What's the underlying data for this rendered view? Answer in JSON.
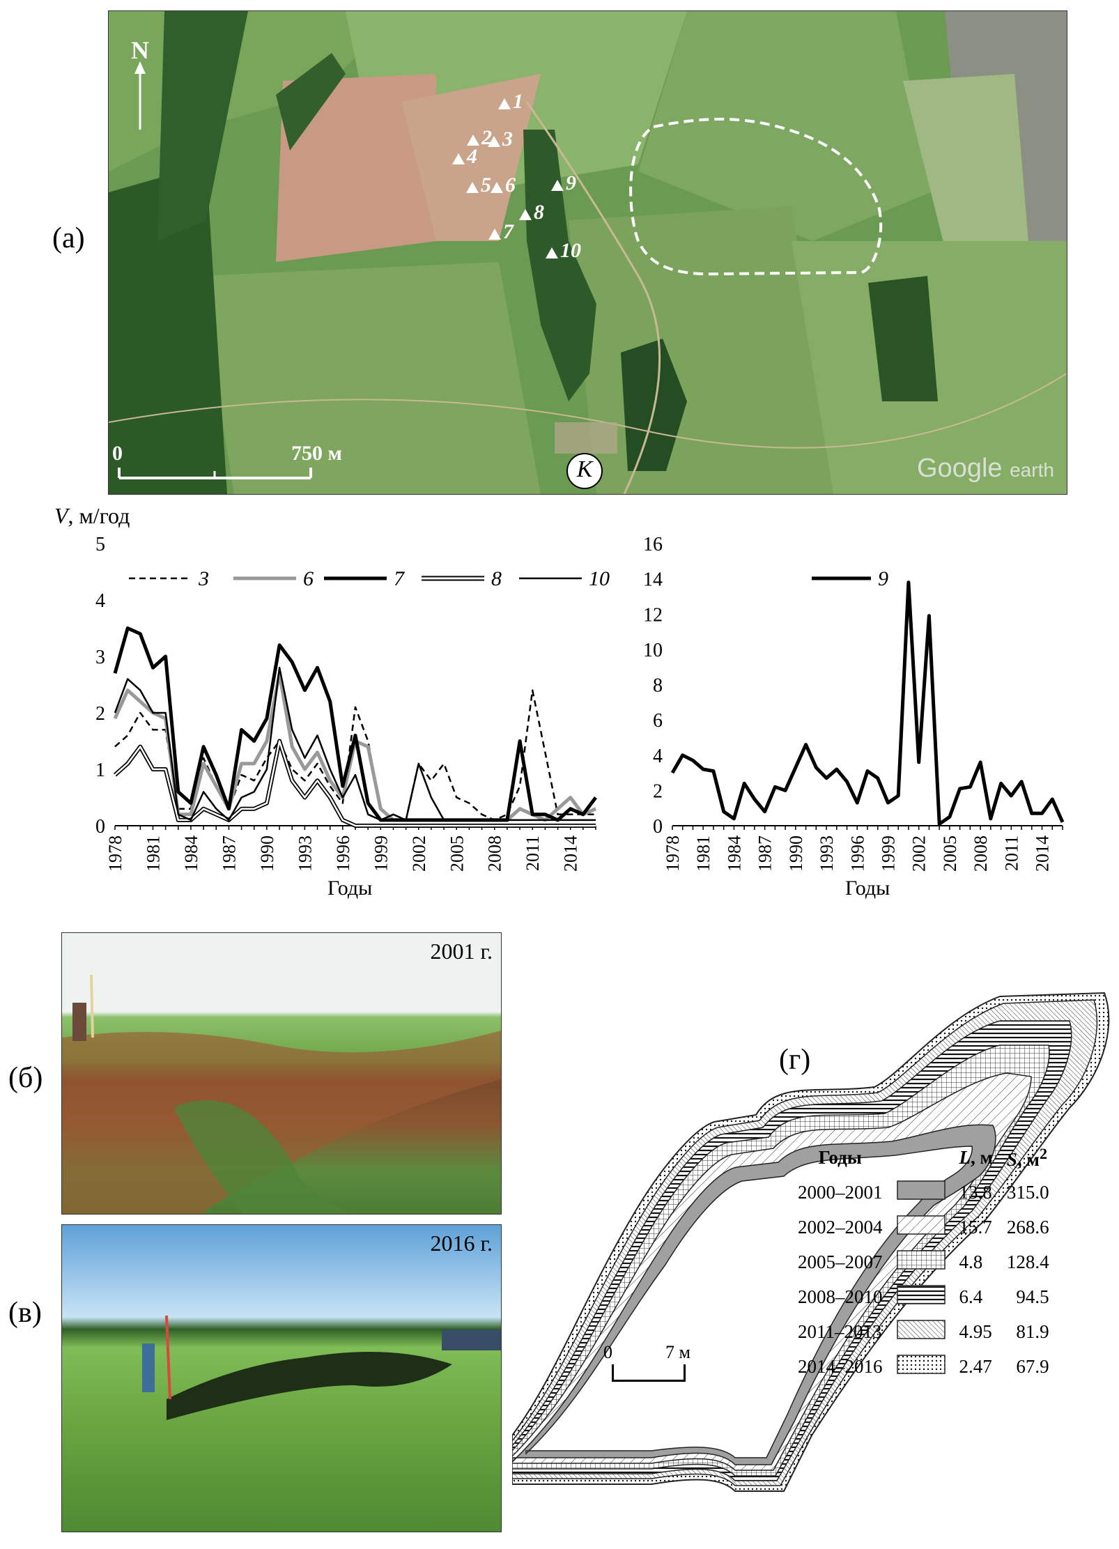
{
  "panels": {
    "a": "(а)",
    "b": "(б)",
    "v": "(в)",
    "g": "(г)"
  },
  "map": {
    "north": "N",
    "scale_zero": "0",
    "scale_end": "750 м",
    "site_marker": "К",
    "watermark_brand": "Google",
    "watermark_product": "earth",
    "points": [
      {
        "id": "1"
      },
      {
        "id": "2"
      },
      {
        "id": "3"
      },
      {
        "id": "4"
      },
      {
        "id": "5"
      },
      {
        "id": "6"
      },
      {
        "id": "7"
      },
      {
        "id": "8"
      },
      {
        "id": "9"
      },
      {
        "id": "10"
      }
    ]
  },
  "photos": {
    "top_year": "2001 г.",
    "bottom_year": "2016 г."
  },
  "chart_data": [
    {
      "type": "line",
      "ylabel_main": "V",
      "ylabel_unit": ", м/год",
      "xlabel": "Годы",
      "ylim": [
        0,
        5
      ],
      "yticks": [
        "0",
        "1",
        "2",
        "3",
        "4",
        "5"
      ],
      "xticks": [
        "1978",
        "1981",
        "1984",
        "1987",
        "1990",
        "1993",
        "1996",
        "1999",
        "2002",
        "2005",
        "2008",
        "2011",
        "2014"
      ],
      "x": [
        1978,
        1979,
        1980,
        1981,
        1982,
        1983,
        1984,
        1985,
        1986,
        1987,
        1988,
        1989,
        1990,
        1991,
        1992,
        1993,
        1994,
        1995,
        1996,
        1997,
        1998,
        1999,
        2000,
        2001,
        2002,
        2003,
        2004,
        2005,
        2006,
        2007,
        2008,
        2009,
        2010,
        2011,
        2012,
        2013,
        2014,
        2015,
        2016
      ],
      "series": [
        {
          "name": "3",
          "style": "dashed",
          "color": "#000000",
          "values": [
            1.4,
            1.6,
            2.0,
            1.7,
            1.7,
            0.3,
            0.3,
            1.2,
            0.7,
            0.3,
            0.9,
            0.8,
            1.2,
            1.5,
            1.0,
            0.8,
            1.1,
            0.7,
            0.4,
            2.1,
            1.5,
            0.3,
            0.1,
            0.1,
            1.1,
            0.8,
            1.1,
            0.5,
            0.4,
            0.2,
            0.1,
            0.2,
            0.7,
            2.4,
            1.3,
            0.2,
            0.2,
            0.2,
            0.2
          ]
        },
        {
          "name": "6",
          "style": "solid",
          "color": "#999999",
          "values": [
            1.9,
            2.4,
            2.2,
            2.0,
            1.9,
            0.2,
            0.2,
            1.1,
            0.7,
            0.3,
            1.1,
            1.1,
            1.5,
            2.7,
            1.4,
            1.0,
            1.3,
            0.8,
            0.5,
            1.5,
            1.4,
            0.3,
            0.1,
            0.1,
            0.1,
            0.1,
            0.1,
            0.1,
            0.1,
            0.1,
            0.1,
            0.1,
            0.3,
            0.2,
            0.1,
            0.3,
            0.5,
            0.2,
            0.3
          ]
        },
        {
          "name": "7",
          "style": "bold",
          "color": "#000000",
          "values": [
            2.7,
            3.5,
            3.4,
            2.8,
            3.0,
            0.6,
            0.4,
            1.4,
            0.9,
            0.3,
            1.7,
            1.5,
            1.9,
            3.2,
            2.9,
            2.4,
            2.8,
            2.2,
            0.7,
            1.6,
            0.4,
            0.1,
            0.1,
            0.1,
            0.1,
            0.1,
            0.1,
            0.1,
            0.1,
            0.1,
            0.1,
            0.1,
            1.5,
            0.2,
            0.2,
            0.1,
            0.3,
            0.2,
            0.5
          ]
        },
        {
          "name": "8",
          "style": "double",
          "color": "#000000",
          "values": [
            0.9,
            1.1,
            1.4,
            1.0,
            1.0,
            0.1,
            0.1,
            0.3,
            0.2,
            0.1,
            0.3,
            0.3,
            0.4,
            1.5,
            0.8,
            0.5,
            0.8,
            0.5,
            0.1,
            0.0,
            0.0,
            0.0,
            0.0,
            0.0,
            0.0,
            0.0,
            0.0,
            0.0,
            0.0,
            0.0,
            0.0,
            0.0,
            0.0,
            0.0,
            0.0,
            0.0,
            0.0,
            0.0,
            0.0
          ]
        },
        {
          "name": "10",
          "style": "thin",
          "color": "#000000",
          "values": [
            2.0,
            2.6,
            2.4,
            2.0,
            2.0,
            0.2,
            0.1,
            0.6,
            0.3,
            0.1,
            0.5,
            0.6,
            1.0,
            2.8,
            1.7,
            1.2,
            1.6,
            1.0,
            0.5,
            0.9,
            0.2,
            0.1,
            0.2,
            0.1,
            1.1,
            0.5,
            0.1,
            0.1,
            0.1,
            0.1,
            0.1,
            0.1,
            0.1,
            0.1,
            0.1,
            0.1,
            0.1,
            0.1,
            0.1
          ]
        }
      ]
    },
    {
      "type": "line",
      "xlabel": "Годы",
      "ylim": [
        0,
        16
      ],
      "yticks": [
        "0",
        "2",
        "4",
        "6",
        "8",
        "10",
        "12",
        "14",
        "16"
      ],
      "xticks": [
        "1978",
        "1981",
        "1984",
        "1987",
        "1990",
        "1993",
        "1996",
        "1999",
        "2002",
        "2005",
        "2008",
        "2011",
        "2014"
      ],
      "x": [
        1978,
        1979,
        1980,
        1981,
        1982,
        1983,
        1984,
        1985,
        1986,
        1987,
        1988,
        1989,
        1990,
        1991,
        1992,
        1993,
        1994,
        1995,
        1996,
        1997,
        1998,
        1999,
        2000,
        2001,
        2002,
        2003,
        2004,
        2005,
        2006,
        2007,
        2008,
        2009,
        2010,
        2011,
        2012,
        2013,
        2014,
        2015,
        2016
      ],
      "series": [
        {
          "name": "9",
          "style": "bold",
          "color": "#000000",
          "values": [
            3.0,
            4.0,
            3.7,
            3.2,
            3.1,
            0.8,
            0.4,
            2.4,
            1.5,
            0.8,
            2.2,
            2.0,
            3.3,
            4.6,
            3.3,
            2.7,
            3.2,
            2.5,
            1.3,
            3.1,
            2.7,
            1.3,
            1.7,
            13.8,
            3.6,
            11.9,
            0.1,
            0.5,
            2.1,
            2.2,
            3.6,
            0.4,
            2.4,
            1.7,
            2.5,
            0.7,
            0.7,
            1.5,
            0.2
          ]
        }
      ]
    }
  ],
  "legend": {
    "head_years": "Годы",
    "head_L_sym": "L",
    "head_L_unit": ", м",
    "head_S_sym": "S",
    "head_S_unit": ", м",
    "head_S_sup": "2",
    "rows": [
      {
        "years": "2000–2001",
        "L": "13.8",
        "S": "315.0",
        "pattern": "solid-gray"
      },
      {
        "years": "2002–2004",
        "L": "15.7",
        "S": "268.6",
        "pattern": "diagonal-thin"
      },
      {
        "years": "2005–2007",
        "L": "4.8",
        "S": "128.4",
        "pattern": "grid"
      },
      {
        "years": "2008–2010",
        "L": "6.4",
        "S": "94.5",
        "pattern": "horizontal"
      },
      {
        "years": "2011–2013",
        "L": "4.95",
        "S": "81.9",
        "pattern": "diagonal-dense"
      },
      {
        "years": "2014–2016",
        "L": "2.47",
        "S": "67.9",
        "pattern": "dots"
      }
    ],
    "scale_zero": "0",
    "scale_label": "7 м"
  }
}
